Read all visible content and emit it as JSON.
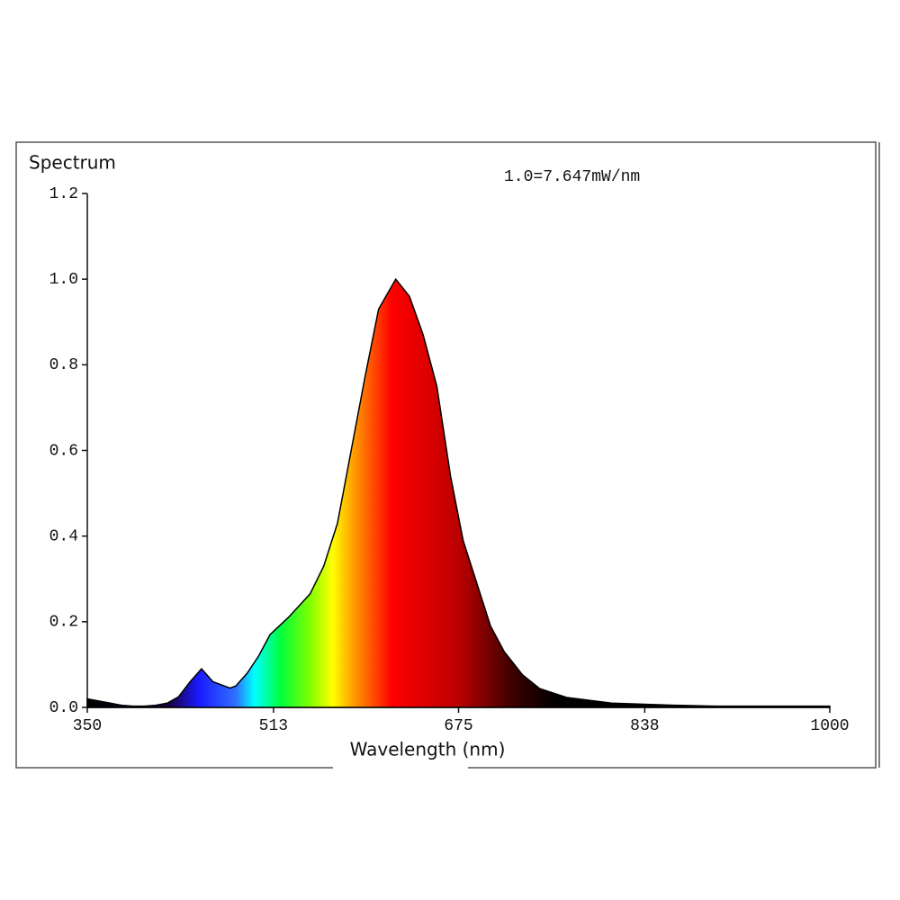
{
  "chart_data": {
    "type": "area",
    "title": "Spectrum",
    "annotation": "1.0=7.647mW/nm",
    "x_label": "Wavelength (nm)",
    "x": [
      350,
      360,
      370,
      380,
      390,
      400,
      410,
      420,
      430,
      440,
      450,
      460,
      470,
      475,
      480,
      490,
      500,
      510,
      526,
      545,
      557,
      569,
      581,
      593,
      605,
      620,
      632,
      644,
      656,
      668,
      679,
      691,
      703,
      715,
      731,
      746,
      770,
      809,
      864,
      900,
      1000
    ],
    "values": [
      0.02,
      0.015,
      0.01,
      0.005,
      0.003,
      0.003,
      0.005,
      0.01,
      0.025,
      0.06,
      0.09,
      0.06,
      0.05,
      0.045,
      0.05,
      0.08,
      0.12,
      0.17,
      0.21,
      0.265,
      0.33,
      0.43,
      0.6,
      0.77,
      0.93,
      1.0,
      0.96,
      0.87,
      0.75,
      0.54,
      0.39,
      0.29,
      0.19,
      0.13,
      0.076,
      0.044,
      0.023,
      0.01,
      0.005,
      0.003,
      0.003
    ],
    "xlim": [
      350,
      1000
    ],
    "xticks": [
      350,
      513,
      675,
      838,
      1000
    ],
    "ylim": [
      0,
      1.2
    ],
    "yticks": [
      {
        "value": 0,
        "label": "0.0"
      },
      0.2,
      0.4,
      0.6,
      0.8,
      {
        "value": 1,
        "label": "1.0"
      },
      1.2
    ]
  }
}
